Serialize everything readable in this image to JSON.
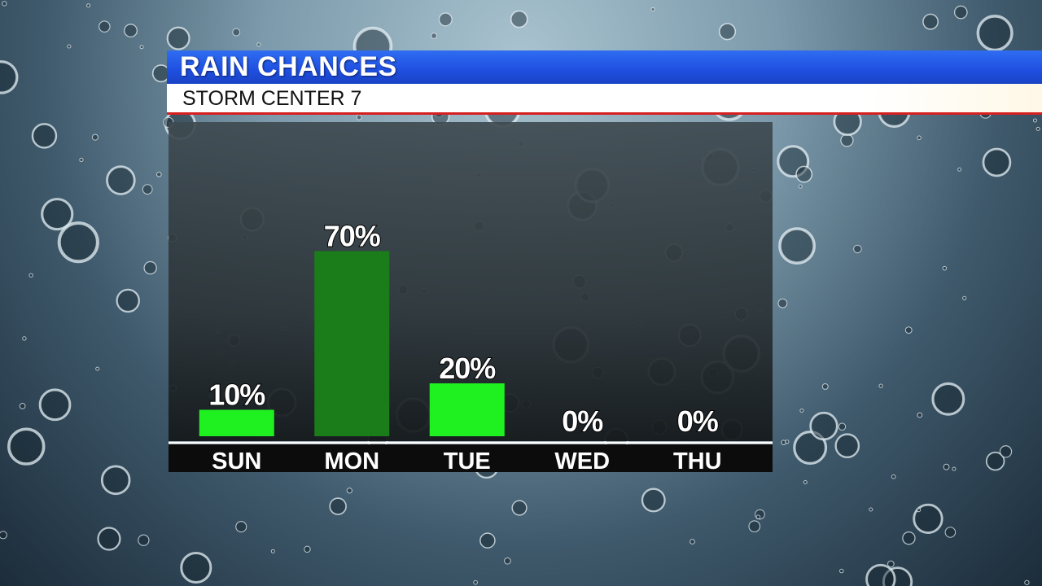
{
  "chart_data": {
    "type": "bar",
    "title": "RAIN CHANCES",
    "subtitle": "STORM CENTER 7",
    "categories": [
      "SUN",
      "MON",
      "TUE",
      "WED",
      "THU"
    ],
    "values": [
      10,
      70,
      20,
      0,
      0
    ],
    "value_labels": [
      "10%",
      "70%",
      "20%",
      "0%",
      "0%"
    ],
    "colors": [
      "#1ff01f",
      "#1a7d1a",
      "#1ff01f",
      "#1ff01f",
      "#1ff01f"
    ]
  }
}
